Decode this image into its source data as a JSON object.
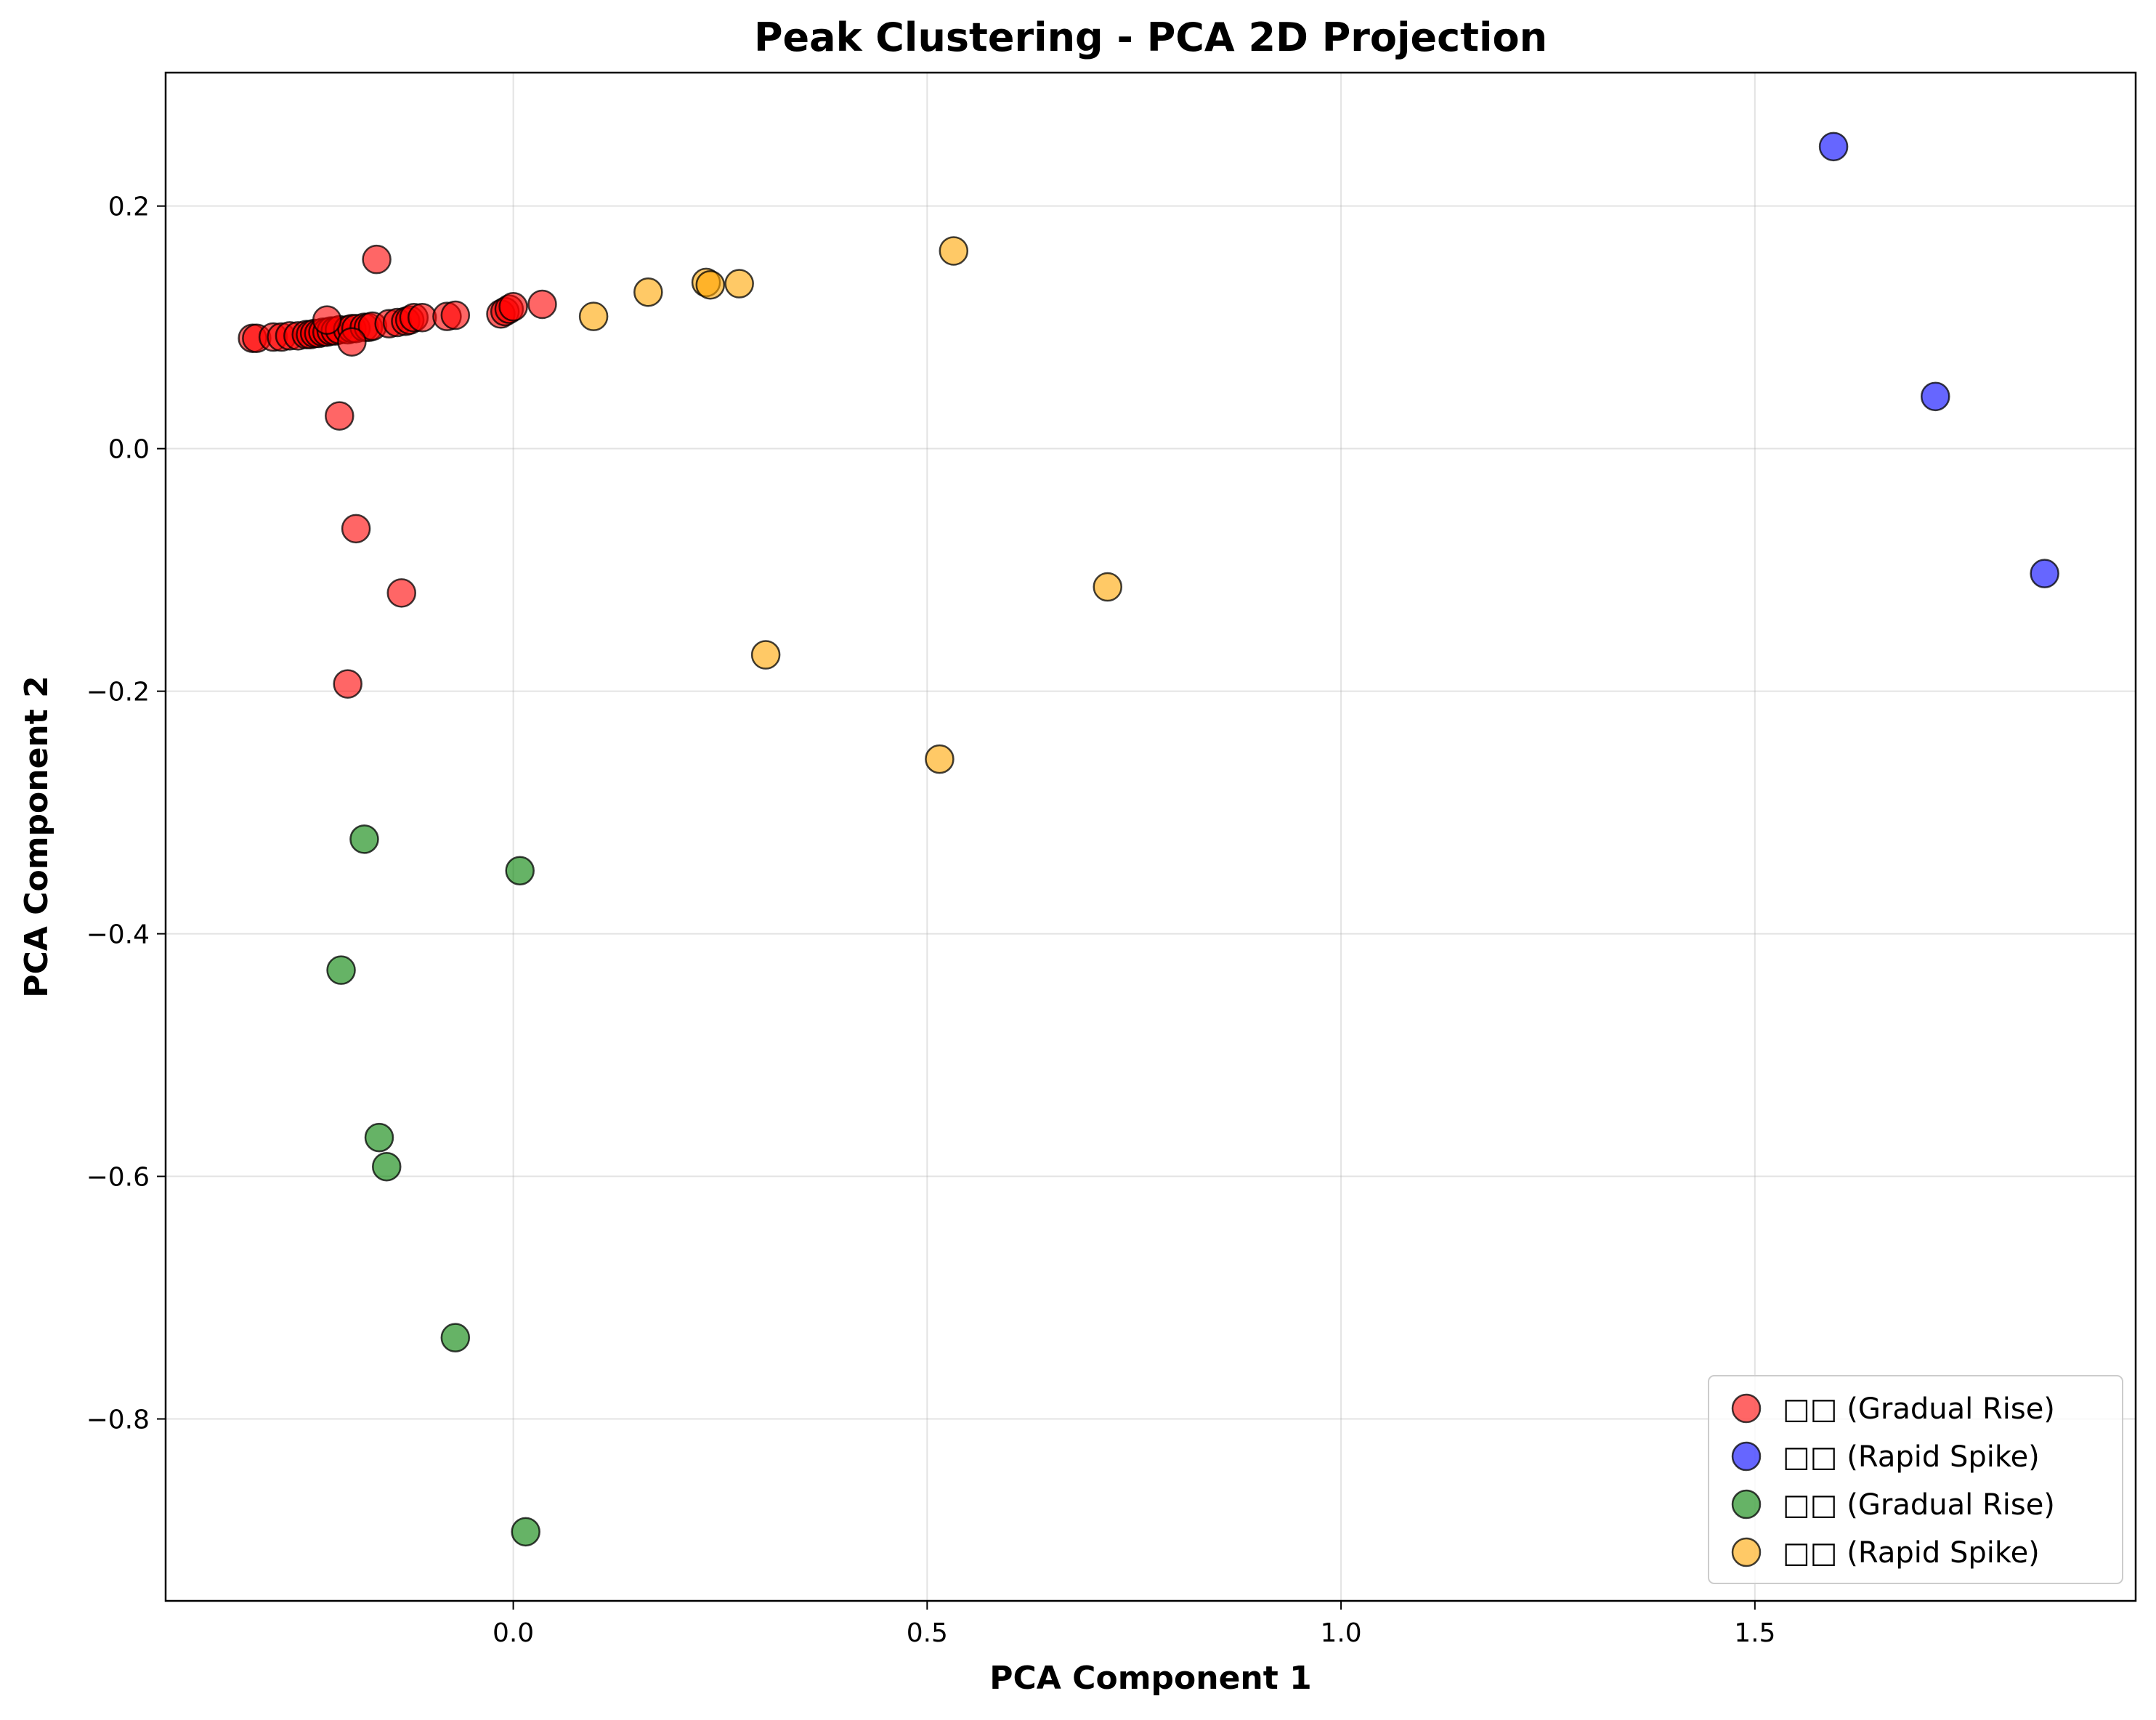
{
  "chart_data": {
    "type": "scatter",
    "title": "Peak Clustering - PCA 2D Projection",
    "xlabel": "PCA Component 1",
    "ylabel": "PCA Component 2",
    "xlim": [
      -0.42,
      1.96
    ],
    "ylim": [
      -0.95,
      0.31
    ],
    "xticks": [
      0.0,
      0.5,
      1.0,
      1.5
    ],
    "xtick_labels": [
      "0.0",
      "0.5",
      "1.0",
      "1.5"
    ],
    "yticks": [
      0.2,
      0.0,
      -0.2,
      -0.4,
      -0.6,
      -0.8
    ],
    "ytick_labels": [
      "0.2",
      "0.0",
      "−0.2",
      "−0.4",
      "−0.6",
      "−0.8"
    ],
    "grid": true,
    "legend_position": "bottom-right",
    "series": [
      {
        "name": "□□ (Gradual Rise)",
        "color": "#ff0000",
        "x": [
          -0.315,
          -0.31,
          -0.29,
          -0.28,
          -0.27,
          -0.26,
          -0.25,
          -0.245,
          -0.24,
          -0.235,
          -0.23,
          -0.225,
          -0.22,
          -0.215,
          -0.21,
          -0.2,
          -0.195,
          -0.19,
          -0.18,
          -0.175,
          -0.17,
          -0.15,
          -0.14,
          -0.13,
          -0.125,
          -0.12,
          -0.11,
          -0.08,
          -0.07,
          -0.015,
          -0.01,
          -0.005,
          0.0,
          0.035,
          -0.225,
          -0.165,
          -0.195,
          -0.21,
          -0.19,
          -0.135,
          -0.2
        ],
        "y": [
          0.091,
          0.091,
          0.092,
          0.092,
          0.093,
          0.093,
          0.094,
          0.094,
          0.095,
          0.095,
          0.096,
          0.096,
          0.097,
          0.097,
          0.098,
          0.098,
          0.099,
          0.099,
          0.1,
          0.1,
          0.101,
          0.103,
          0.104,
          0.105,
          0.106,
          0.108,
          0.108,
          0.109,
          0.11,
          0.111,
          0.113,
          0.115,
          0.117,
          0.119,
          0.106,
          0.156,
          0.088,
          0.027,
          -0.066,
          -0.119,
          -0.194
        ]
      },
      {
        "name": "□□ (Rapid Spike)",
        "color": "#0000ff",
        "x": [
          1.595,
          1.718,
          1.85
        ],
        "y": [
          0.249,
          0.043,
          -0.103
        ]
      },
      {
        "name": "□□ (Gradual Rise)",
        "color": "#008000",
        "x": [
          -0.18,
          0.008,
          -0.208,
          -0.162,
          -0.153,
          -0.07,
          0.015
        ],
        "y": [
          -0.322,
          -0.348,
          -0.43,
          -0.568,
          -0.592,
          -0.733,
          -0.893
        ]
      },
      {
        "name": "□□ (Rapid Spike)",
        "color": "#ffa500",
        "x": [
          0.097,
          0.163,
          0.233,
          0.238,
          0.273,
          0.532,
          0.718,
          0.305,
          0.515
        ],
        "y": [
          0.109,
          0.129,
          0.137,
          0.135,
          0.136,
          0.163,
          -0.114,
          -0.17,
          -0.256
        ]
      }
    ]
  }
}
